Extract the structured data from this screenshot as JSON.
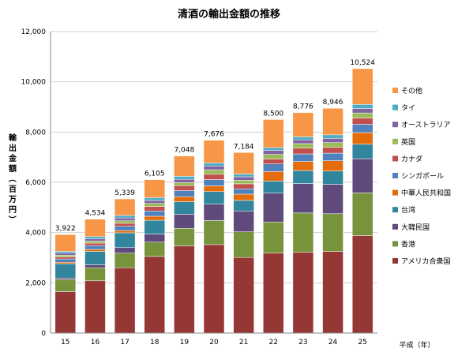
{
  "chart_data": {
    "type": "bar",
    "stacked": true,
    "title": "清酒の輸出金額の推移",
    "ylabel": "輸出金額（百万円）",
    "xlabel": "平成（年）",
    "ylim": [
      0,
      12000
    ],
    "yticks": [
      "0",
      "2,000",
      "4,000",
      "6,000",
      "8,000",
      "10,000",
      "12,000"
    ],
    "ytick_values": [
      0,
      2000,
      4000,
      6000,
      8000,
      10000,
      12000
    ],
    "grid": true,
    "legend_position": "right",
    "categories": [
      "15",
      "16",
      "17",
      "18",
      "19",
      "20",
      "21",
      "22",
      "23",
      "24",
      "25"
    ],
    "totals": [
      3922,
      4534,
      5339,
      6105,
      7048,
      7676,
      7184,
      8500,
      8776,
      8946,
      10524
    ],
    "total_labels": [
      "3,922",
      "4,534",
      "5,339",
      "6,105",
      "7,048",
      "7,676",
      "7,184",
      "8,500",
      "8,776",
      "8,946",
      "10,524"
    ],
    "series": [
      {
        "name": "アメリカ合衆国",
        "color": "#953735",
        "values": [
          1650,
          2080,
          2600,
          3050,
          3470,
          3520,
          3010,
          3180,
          3220,
          3250,
          3880
        ]
      },
      {
        "name": "香港",
        "color": "#77933c",
        "values": [
          480,
          520,
          580,
          570,
          700,
          960,
          1020,
          1240,
          1560,
          1500,
          1700
        ]
      },
      {
        "name": "大韓民国",
        "color": "#604a7b",
        "values": [
          60,
          120,
          220,
          320,
          560,
          650,
          830,
          1150,
          1170,
          1170,
          1360
        ]
      },
      {
        "name": "台湾",
        "color": "#31859c",
        "values": [
          570,
          530,
          590,
          550,
          500,
          500,
          420,
          480,
          520,
          530,
          580
        ]
      },
      {
        "name": "中華人民共和国",
        "color": "#e46c0a",
        "values": [
          60,
          80,
          90,
          160,
          200,
          230,
          250,
          380,
          360,
          410,
          460
        ]
      },
      {
        "name": "シンガポール",
        "color": "#4f81bd",
        "values": [
          130,
          150,
          170,
          210,
          240,
          250,
          210,
          300,
          300,
          300,
          330
        ]
      },
      {
        "name": "カナダ",
        "color": "#c0504d",
        "values": [
          80,
          100,
          120,
          180,
          200,
          210,
          200,
          200,
          230,
          230,
          250
        ]
      },
      {
        "name": "英国",
        "color": "#9bbb59",
        "values": [
          70,
          80,
          100,
          120,
          120,
          180,
          140,
          180,
          180,
          190,
          200
        ]
      },
      {
        "name": "オーストラリア",
        "color": "#8064a2",
        "values": [
          80,
          90,
          110,
          120,
          130,
          150,
          140,
          160,
          150,
          170,
          180
        ]
      },
      {
        "name": "タイ",
        "color": "#4bacc6",
        "values": [
          70,
          90,
          100,
          110,
          120,
          120,
          110,
          110,
          120,
          140,
          160
        ]
      },
      {
        "name": "その他",
        "color": "#f79646",
        "values": [
          672,
          694,
          659,
          715,
          808,
          906,
          854,
          1120,
          966,
          1056,
          1424
        ]
      }
    ]
  }
}
